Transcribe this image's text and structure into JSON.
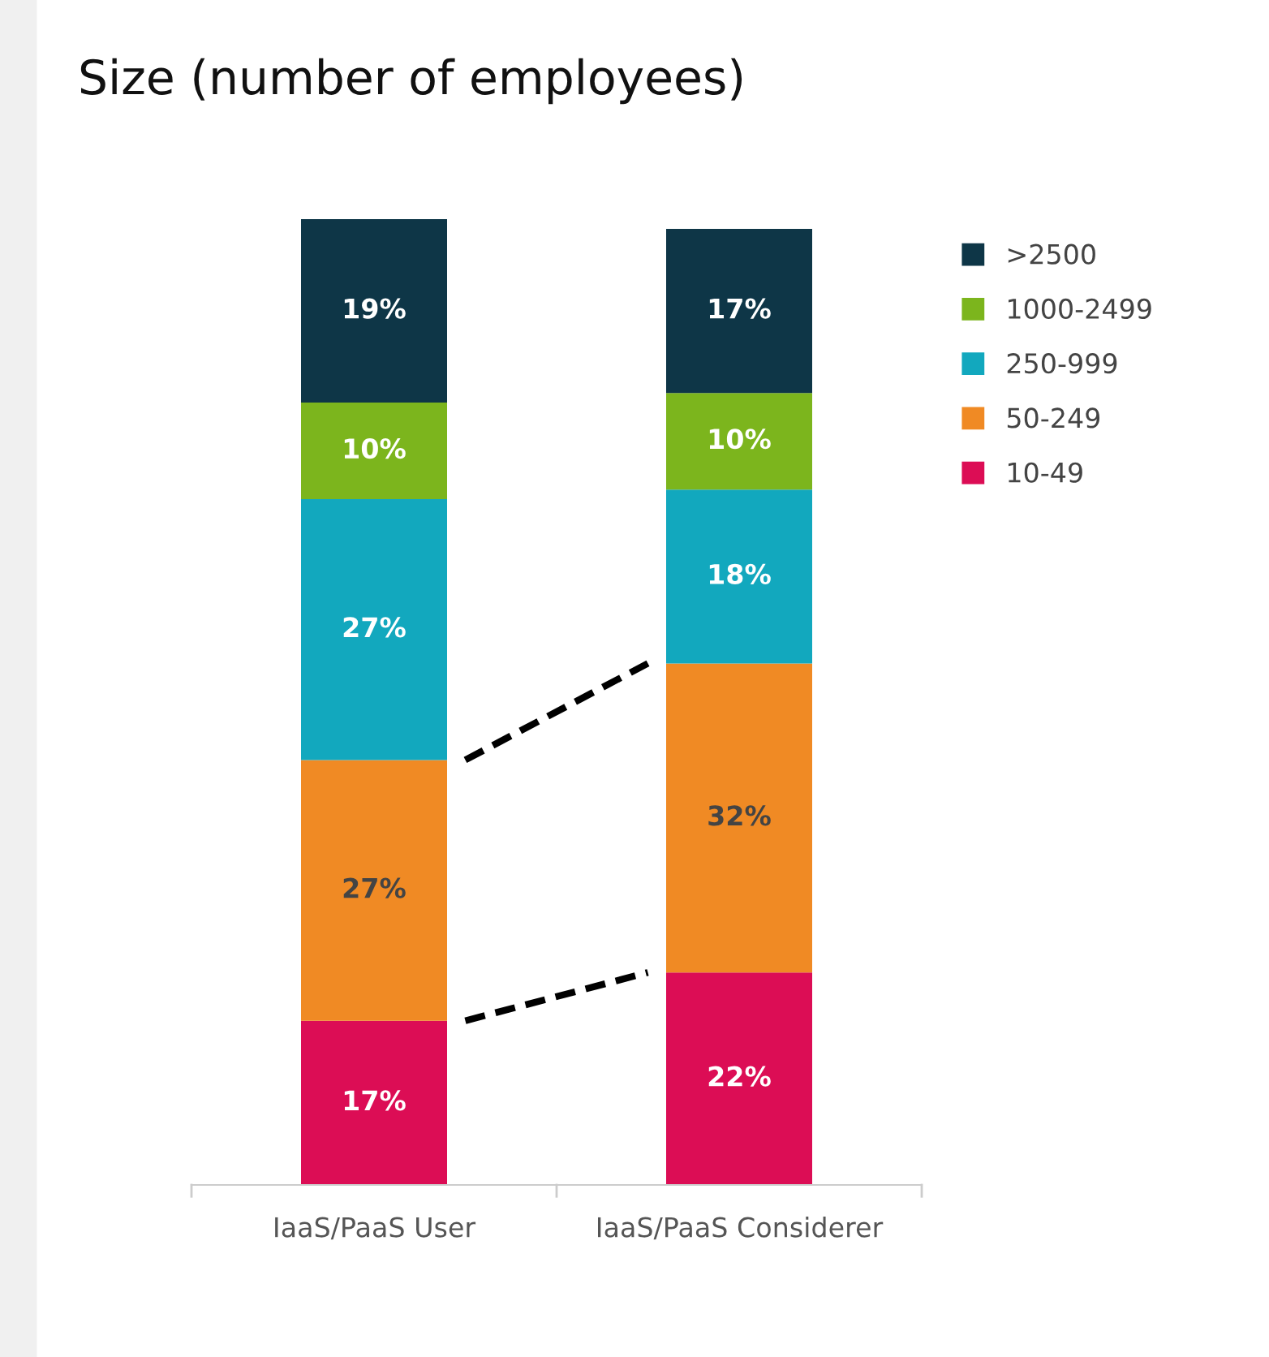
{
  "chart_data": {
    "type": "bar",
    "title": "Size (number of employees)",
    "stacked": true,
    "legend": "right",
    "categories": [
      "IaaS/PaaS User",
      "IaaS/PaaS Considerer"
    ],
    "series": [
      {
        "name": "10-49",
        "color": "#dc0d55",
        "values": [
          17,
          22
        ],
        "value_labels": [
          "17%",
          "22%"
        ]
      },
      {
        "name": "50-249",
        "color": "#f08a24",
        "values": [
          27,
          32
        ],
        "value_labels": [
          "27%",
          "32%"
        ]
      },
      {
        "name": "250-999",
        "color": "#12a8be",
        "values": [
          27,
          18
        ],
        "value_labels": [
          "27%",
          "18%"
        ]
      },
      {
        "name": "1000-2499",
        "color": "#7cb51d",
        "values": [
          10,
          10
        ],
        "value_labels": [
          "10%",
          "10%"
        ]
      },
      {
        "name": ">2500",
        "color": "#0e3647",
        "values": [
          19,
          17
        ],
        "value_labels": [
          "19%",
          "17%"
        ]
      }
    ]
  }
}
